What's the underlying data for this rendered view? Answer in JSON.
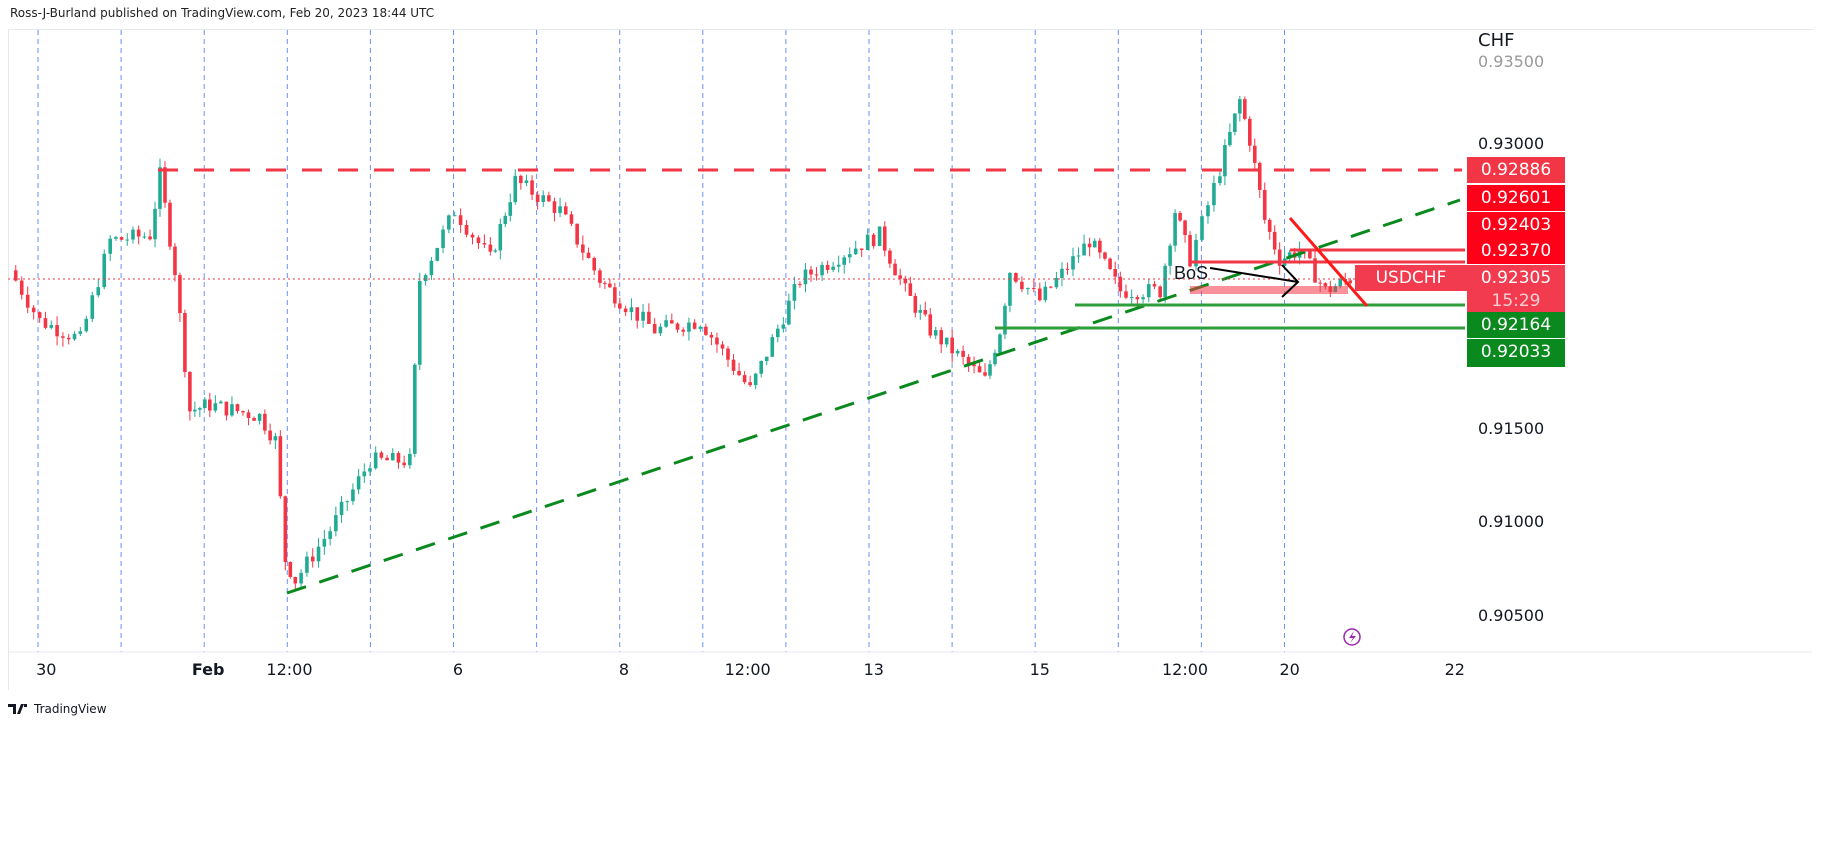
{
  "header": {
    "published": "Ross-J-Burland published on TradingView.com, Feb 20, 2023 18:44 UTC"
  },
  "footer": {
    "brand": "TradingView"
  },
  "chart_data": {
    "type": "candlestick",
    "symbol": "USDCHF",
    "currency_label": "CHF",
    "x_unit": "trading days since Jan 30 session",
    "x_ticks": [
      {
        "t": 0.1,
        "label": "30"
      },
      {
        "t": 2.05,
        "label": "Feb"
      },
      {
        "t": 3.03,
        "label": "12:00"
      },
      {
        "t": 5.06,
        "label": "6"
      },
      {
        "t": 7.06,
        "label": "8"
      },
      {
        "t": 8.55,
        "label": "12:00"
      },
      {
        "t": 10.07,
        "label": "13"
      },
      {
        "t": 12.07,
        "label": "15"
      },
      {
        "t": 13.82,
        "label": "12:00"
      },
      {
        "t": 15.08,
        "label": "20"
      },
      {
        "t": 17.07,
        "label": "22"
      }
    ],
    "y_ticks": [
      {
        "price": 0.935,
        "label": "0.93500"
      },
      {
        "price": 0.93,
        "label": "0.93000"
      },
      {
        "price": 0.915,
        "label": "0.91500"
      },
      {
        "price": 0.91,
        "label": "0.91000"
      },
      {
        "price": 0.905,
        "label": "0.90500"
      }
    ],
    "ylim": [
      0.9025,
      0.9365
    ],
    "price_series": [
      [
        -0.34,
        0.9235
      ],
      [
        0.02,
        0.9208
      ],
      [
        0.51,
        0.9198
      ],
      [
        0.87,
        0.9251
      ],
      [
        1.35,
        0.9254
      ],
      [
        1.47,
        0.9286
      ],
      [
        1.65,
        0.9235
      ],
      [
        1.83,
        0.916
      ],
      [
        2.07,
        0.9163
      ],
      [
        2.67,
        0.9157
      ],
      [
        2.86,
        0.9144
      ],
      [
        2.98,
        0.908
      ],
      [
        3.1,
        0.9069
      ],
      [
        3.52,
        0.9096
      ],
      [
        4.0,
        0.9133
      ],
      [
        4.48,
        0.9133
      ],
      [
        4.6,
        0.923
      ],
      [
        5.02,
        0.9267
      ],
      [
        5.45,
        0.9241
      ],
      [
        5.75,
        0.9283
      ],
      [
        6.29,
        0.9267
      ],
      [
        6.77,
        0.923
      ],
      [
        7.01,
        0.9219
      ],
      [
        7.43,
        0.9203
      ],
      [
        7.98,
        0.9208
      ],
      [
        8.58,
        0.9171
      ],
      [
        9.18,
        0.923
      ],
      [
        9.78,
        0.9246
      ],
      [
        10.14,
        0.9254
      ],
      [
        10.45,
        0.9224
      ],
      [
        10.75,
        0.9203
      ],
      [
        11.41,
        0.9176
      ],
      [
        11.59,
        0.9203
      ],
      [
        11.71,
        0.9235
      ],
      [
        12.07,
        0.9219
      ],
      [
        12.67,
        0.9251
      ],
      [
        13.04,
        0.9224
      ],
      [
        13.52,
        0.9224
      ],
      [
        13.7,
        0.9267
      ],
      [
        13.88,
        0.9241
      ],
      [
        14.24,
        0.9289
      ],
      [
        14.48,
        0.9326
      ],
      [
        14.6,
        0.9305
      ],
      [
        14.78,
        0.9262
      ],
      [
        14.96,
        0.9241
      ],
      [
        15.2,
        0.9246
      ],
      [
        15.51,
        0.9224
      ],
      [
        15.81,
        0.92305
      ]
    ],
    "price_tags": [
      {
        "label": "0.92886",
        "color": "#f23645"
      },
      {
        "label": "0.92601",
        "color": "#ff0019"
      },
      {
        "label": "0.92403",
        "color": "#ff0019"
      },
      {
        "label": "0.92370",
        "color": "#ff0019"
      },
      {
        "label": "0.92164",
        "color": "#0a8a1e"
      },
      {
        "label": "0.92033",
        "color": "#0a8a1e"
      }
    ],
    "last_price": {
      "symbol": "USDCHF",
      "price": "0.92305",
      "countdown": "15:29",
      "color": "#f23b4e"
    },
    "annotations": {
      "bos": "BoS"
    },
    "colors": {
      "up": "#22ab94",
      "down": "#f23645",
      "grid": "#2962ff"
    }
  }
}
